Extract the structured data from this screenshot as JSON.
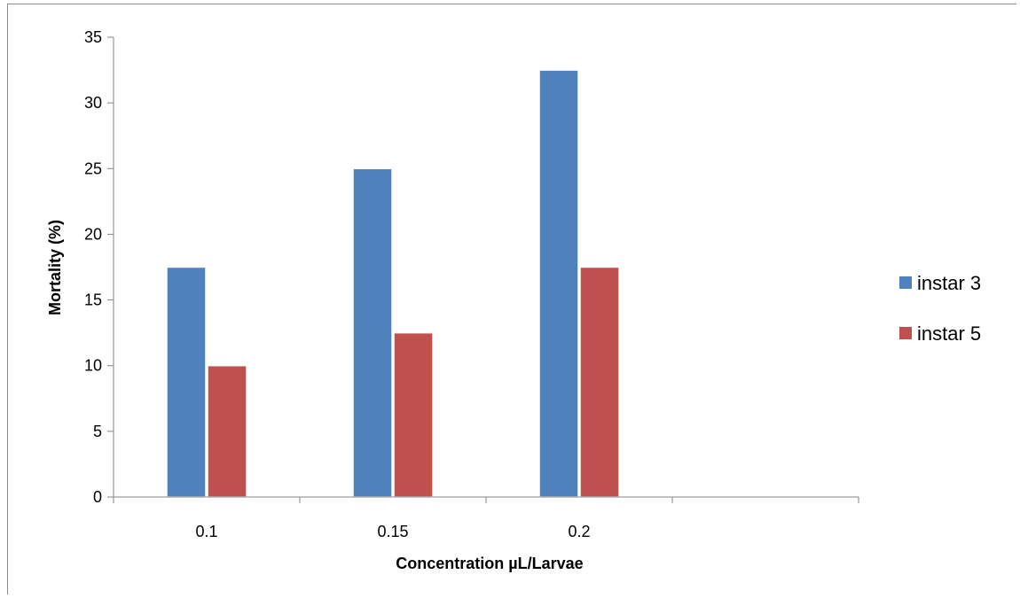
{
  "chart_data": {
    "type": "bar",
    "categories": [
      "0.1",
      "0.15",
      "0.2",
      ""
    ],
    "series": [
      {
        "name": "instar 3",
        "values": [
          17.5,
          25,
          32.5,
          null
        ],
        "color": "#4f81bd"
      },
      {
        "name": "instar 5",
        "values": [
          10,
          12.5,
          17.5,
          null
        ],
        "color": "#c0504d"
      }
    ],
    "title": "",
    "xlabel": "Concentration  µL/Larvae",
    "ylabel": "Mortality (%)",
    "ylim": [
      0,
      35
    ],
    "yticks": [
      0,
      5,
      10,
      15,
      20,
      25,
      30,
      35
    ],
    "grid": false,
    "legend_position": "right"
  }
}
